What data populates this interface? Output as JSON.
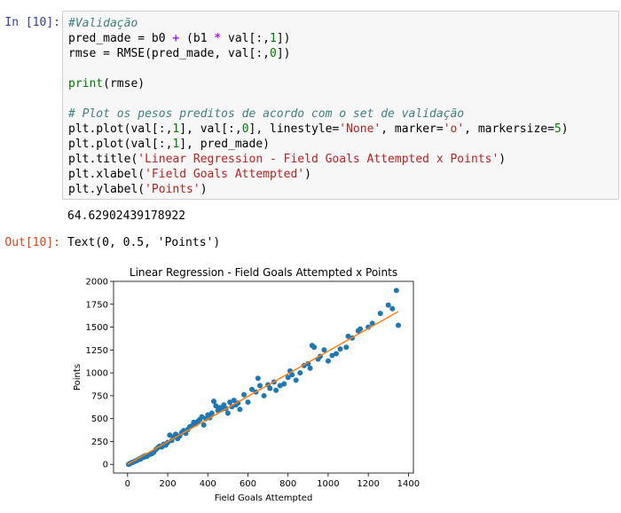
{
  "cell": {
    "in_prompt": "In [10]:",
    "out_prompt": "Out[10]:",
    "code_lines": [
      [
        {
          "t": "#Validação",
          "c": "comment"
        }
      ],
      [
        {
          "t": "pred_made = b0 "
        },
        {
          "t": "+",
          "c": "op"
        },
        {
          "t": " (b1 "
        },
        {
          "t": "*",
          "c": "op"
        },
        {
          "t": " val[:,"
        },
        {
          "t": "1",
          "c": "number"
        },
        {
          "t": "])"
        }
      ],
      [
        {
          "t": "rmse = RMSE(pred_made, val[:,"
        },
        {
          "t": "0",
          "c": "number"
        },
        {
          "t": "])"
        }
      ],
      [
        {
          "t": ""
        }
      ],
      [
        {
          "t": "print",
          "c": "builtin"
        },
        {
          "t": "(rmse)"
        }
      ],
      [
        {
          "t": ""
        }
      ],
      [
        {
          "t": "# Plot os pesos preditos de acordo com o set de validação",
          "c": "comment"
        }
      ],
      [
        {
          "t": "plt.plot(val[:,"
        },
        {
          "t": "1",
          "c": "number"
        },
        {
          "t": "], val[:,"
        },
        {
          "t": "0",
          "c": "number"
        },
        {
          "t": "], linestyle="
        },
        {
          "t": "'None'",
          "c": "string"
        },
        {
          "t": ", marker="
        },
        {
          "t": "'o'",
          "c": "string"
        },
        {
          "t": ", markersize="
        },
        {
          "t": "5",
          "c": "number"
        },
        {
          "t": ")"
        }
      ],
      [
        {
          "t": "plt.plot(val[:,"
        },
        {
          "t": "1",
          "c": "number"
        },
        {
          "t": "], pred_made)"
        }
      ],
      [
        {
          "t": "plt.title("
        },
        {
          "t": "'Linear Regression - Field Goals Attempted x Points'",
          "c": "string"
        },
        {
          "t": ")"
        }
      ],
      [
        {
          "t": "plt.xlabel("
        },
        {
          "t": "'Field Goals Attempted'",
          "c": "string"
        },
        {
          "t": ")"
        }
      ],
      [
        {
          "t": "plt.ylabel("
        },
        {
          "t": "'Points'",
          "c": "string"
        },
        {
          "t": ")"
        }
      ]
    ],
    "stdout": "64.62902439178922",
    "result_text": "Text(0, 0.5, 'Points')"
  },
  "colors": {
    "scatter": "#1f77b4",
    "line": "#ff7f0e"
  },
  "chart_data": {
    "type": "scatter",
    "title": "Linear Regression - Field Goals Attempted x Points",
    "xlabel": "Field Goals Attempted",
    "ylabel": "Points",
    "xlim": [
      -70,
      1425
    ],
    "ylim": [
      -95,
      2000
    ],
    "xticks": [
      0,
      200,
      400,
      600,
      800,
      1000,
      1200,
      1400
    ],
    "yticks": [
      0,
      250,
      500,
      750,
      1000,
      1250,
      1500,
      1750,
      2000
    ],
    "grid": false,
    "series": [
      {
        "kind": "scatter",
        "points": [
          [
            5,
            0
          ],
          [
            10,
            8
          ],
          [
            15,
            12
          ],
          [
            20,
            18
          ],
          [
            25,
            22
          ],
          [
            30,
            25
          ],
          [
            35,
            32
          ],
          [
            40,
            38
          ],
          [
            45,
            40
          ],
          [
            50,
            48
          ],
          [
            55,
            52
          ],
          [
            60,
            60
          ],
          [
            65,
            58
          ],
          [
            70,
            72
          ],
          [
            75,
            80
          ],
          [
            80,
            78
          ],
          [
            85,
            90
          ],
          [
            90,
            95
          ],
          [
            95,
            85
          ],
          [
            100,
            100
          ],
          [
            110,
            108
          ],
          [
            120,
            115
          ],
          [
            130,
            130
          ],
          [
            140,
            160
          ],
          [
            150,
            180
          ],
          [
            160,
            200
          ],
          [
            170,
            190
          ],
          [
            180,
            220
          ],
          [
            190,
            210
          ],
          [
            200,
            240
          ],
          [
            210,
            320
          ],
          [
            220,
            260
          ],
          [
            230,
            300
          ],
          [
            240,
            330
          ],
          [
            250,
            280
          ],
          [
            260,
            310
          ],
          [
            270,
            350
          ],
          [
            280,
            370
          ],
          [
            290,
            340
          ],
          [
            300,
            380
          ],
          [
            310,
            410
          ],
          [
            320,
            420
          ],
          [
            330,
            460
          ],
          [
            340,
            440
          ],
          [
            350,
            470
          ],
          [
            360,
            490
          ],
          [
            370,
            520
          ],
          [
            380,
            430
          ],
          [
            390,
            500
          ],
          [
            400,
            540
          ],
          [
            410,
            510
          ],
          [
            420,
            560
          ],
          [
            430,
            690
          ],
          [
            440,
            640
          ],
          [
            450,
            590
          ],
          [
            460,
            620
          ],
          [
            470,
            600
          ],
          [
            480,
            650
          ],
          [
            490,
            610
          ],
          [
            500,
            560
          ],
          [
            510,
            680
          ],
          [
            520,
            630
          ],
          [
            530,
            700
          ],
          [
            540,
            650
          ],
          [
            550,
            670
          ],
          [
            560,
            600
          ],
          [
            580,
            760
          ],
          [
            600,
            680
          ],
          [
            620,
            820
          ],
          [
            640,
            790
          ],
          [
            650,
            940
          ],
          [
            660,
            860
          ],
          [
            680,
            750
          ],
          [
            700,
            870
          ],
          [
            710,
            830
          ],
          [
            730,
            900
          ],
          [
            740,
            810
          ],
          [
            760,
            860
          ],
          [
            780,
            880
          ],
          [
            800,
            950
          ],
          [
            810,
            1020
          ],
          [
            820,
            980
          ],
          [
            840,
            920
          ],
          [
            860,
            1000
          ],
          [
            880,
            1080
          ],
          [
            900,
            1100
          ],
          [
            910,
            1050
          ],
          [
            920,
            1300
          ],
          [
            930,
            1280
          ],
          [
            950,
            1150
          ],
          [
            960,
            1180
          ],
          [
            980,
            1250
          ],
          [
            1000,
            1130
          ],
          [
            1020,
            1190
          ],
          [
            1040,
            1210
          ],
          [
            1060,
            1260
          ],
          [
            1090,
            1280
          ],
          [
            1100,
            1400
          ],
          [
            1120,
            1380
          ],
          [
            1150,
            1460
          ],
          [
            1160,
            1480
          ],
          [
            1200,
            1500
          ],
          [
            1220,
            1540
          ],
          [
            1260,
            1650
          ],
          [
            1300,
            1740
          ],
          [
            1320,
            1700
          ],
          [
            1340,
            1900
          ],
          [
            1350,
            1520
          ]
        ]
      },
      {
        "kind": "line",
        "points": [
          [
            0,
            0
          ],
          [
            1350,
            1670
          ]
        ]
      }
    ]
  }
}
